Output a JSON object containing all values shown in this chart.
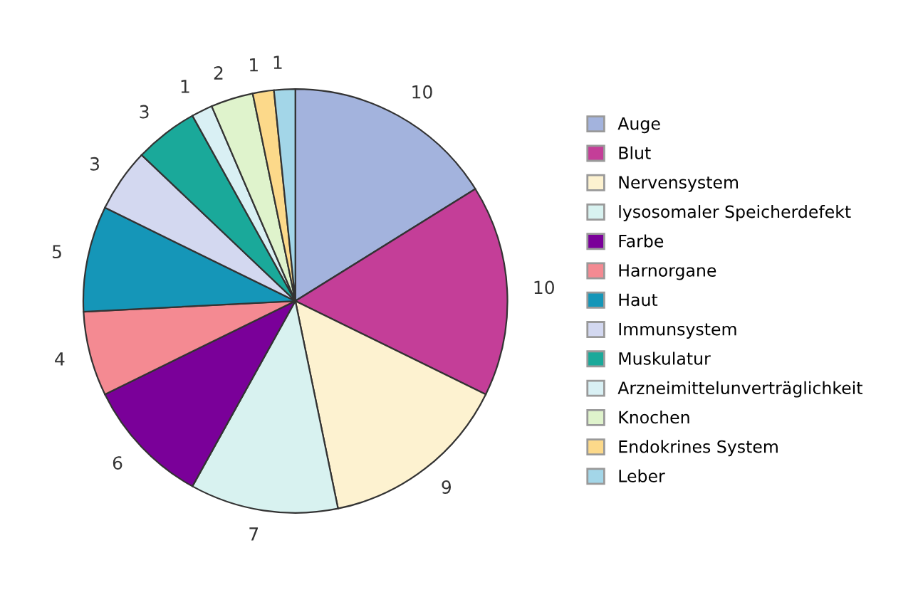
{
  "chart_data": {
    "type": "pie",
    "categories": [
      "Auge",
      "Blut",
      "Nervensystem",
      "lysosomaler Speicherdefekt",
      "Farbe",
      "Harnorgane",
      "Haut",
      "Immunsystem",
      "Muskulatur",
      "Arzneimittelunverträglichkeit",
      "Knochen",
      "Endokrines System",
      "Leber"
    ],
    "values": [
      10,
      10,
      9,
      7,
      6,
      4,
      5,
      3,
      3,
      1,
      2,
      1,
      1
    ],
    "colors": [
      "#a3b3dd",
      "#c43e98",
      "#fdf2d0",
      "#d8f2f0",
      "#7a0099",
      "#f48a92",
      "#1596b8",
      "#d3d8f0",
      "#1aa99a",
      "#d9f0f4",
      "#dff3cc",
      "#fcd98a",
      "#a3d6e8"
    ],
    "data_labels": true,
    "legend": "right"
  }
}
